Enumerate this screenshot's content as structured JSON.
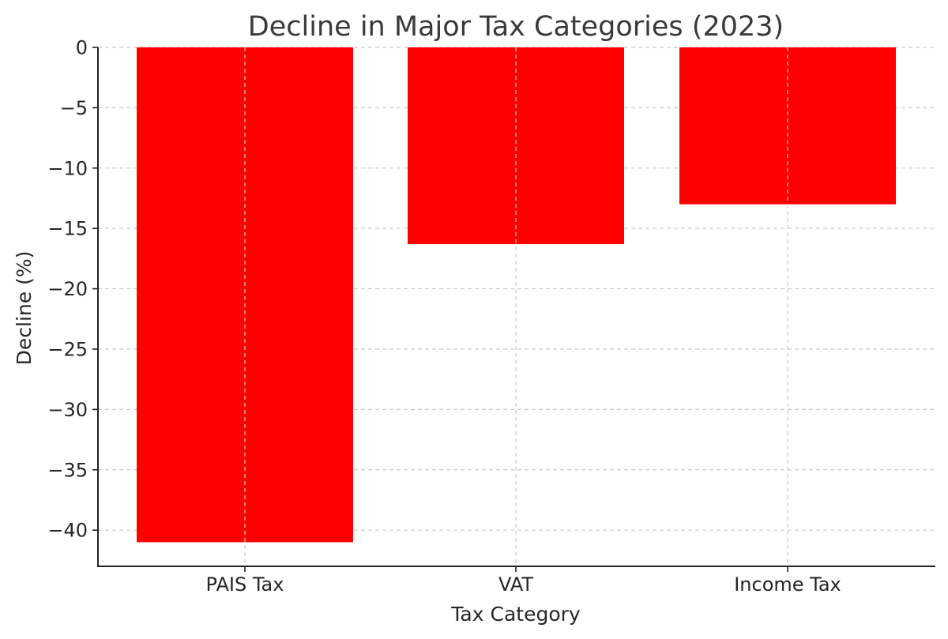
{
  "chart_data": {
    "type": "bar",
    "title": "Decline in Major Tax Categories (2023)",
    "xlabel": "Tax Category",
    "ylabel": "Decline (%)",
    "categories": [
      "PAIS Tax",
      "VAT",
      "Income Tax"
    ],
    "values": [
      -41.0,
      -16.3,
      -13.0
    ],
    "ylim": [
      -43,
      0
    ],
    "yticks": [
      0,
      -5,
      -10,
      -15,
      -20,
      -25,
      -30,
      -35,
      -40
    ],
    "ytick_labels": [
      "0",
      "−5",
      "−10",
      "−15",
      "−20",
      "−25",
      "−30",
      "−35",
      "−40"
    ],
    "bar_color": "#ff0000",
    "grid": true
  }
}
